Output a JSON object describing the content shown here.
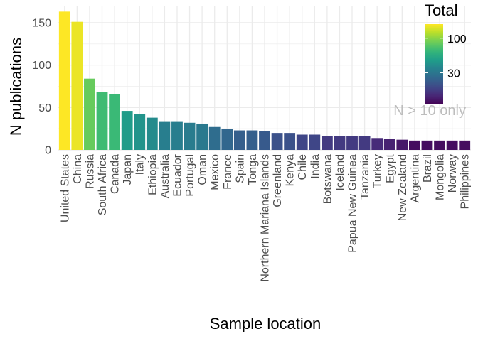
{
  "chart_data": {
    "type": "bar",
    "xlabel": "Sample location",
    "ylabel": "N publications",
    "ylim": [
      0,
      170
    ],
    "y_ticks": [
      0,
      50,
      100,
      150
    ],
    "grid": true,
    "categories": [
      "United States",
      "China",
      "Russia",
      "South Africa",
      "Canada",
      "Japan",
      "Italy",
      "Ethiopia",
      "Australia",
      "Ecuador",
      "Portugal",
      "Oman",
      "Mexico",
      "France",
      "Spain",
      "Tonga",
      "Northern Mariana Islands",
      "Greenland",
      "Kenya",
      "Chile",
      "India",
      "Botswana",
      "Iceland",
      "Papua New Guinea",
      "Tanzania",
      "Turkey",
      "Egypt",
      "New Zealand",
      "Argentina",
      "Brazil",
      "Mongolia",
      "Norway",
      "Philippines"
    ],
    "values": [
      163,
      151,
      84,
      68,
      66,
      46,
      42,
      38,
      33,
      33,
      32,
      31,
      27,
      25,
      23,
      23,
      22,
      20,
      20,
      18,
      18,
      16,
      16,
      16,
      16,
      14,
      13,
      12,
      11,
      11,
      11,
      11,
      11
    ],
    "legend": {
      "title": "Total",
      "scale": "log",
      "colormap": "viridis",
      "range": [
        10,
        163
      ],
      "ticks": [
        30,
        100
      ],
      "placement": "top-right"
    },
    "annotation": "N > 10 only"
  }
}
